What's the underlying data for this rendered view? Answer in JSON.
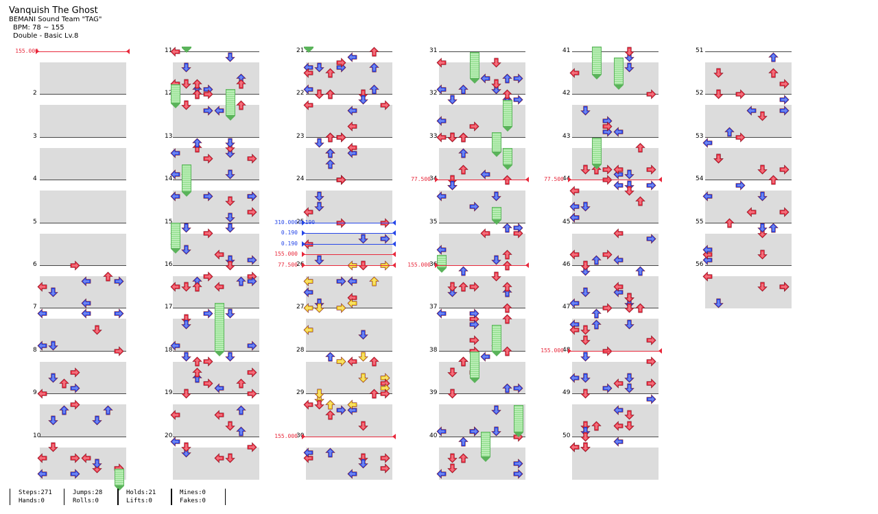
{
  "song": {
    "title": "Vanquish The Ghost",
    "artist": "BEMANI Sound Team \"TAG\"",
    "bpm": "BPM: 78 ~ 155",
    "difficulty": "Double - Basic Lv.8"
  },
  "columns": [
    {
      "measures": [
        "",
        "2",
        "3",
        "4",
        "5",
        "6",
        "7",
        "8",
        "9",
        "10"
      ]
    },
    {
      "measures": [
        "11",
        "12",
        "13",
        "14",
        "15",
        "16",
        "17",
        "18",
        "19",
        "20"
      ]
    },
    {
      "measures": [
        "21",
        "22",
        "23",
        "24",
        "25",
        "26",
        "27",
        "28",
        "29",
        "30"
      ]
    },
    {
      "measures": [
        "31",
        "32",
        "33",
        "34",
        "35",
        "36",
        "37",
        "38",
        "39",
        "40"
      ]
    },
    {
      "measures": [
        "41",
        "42",
        "43",
        "44",
        "45",
        "46",
        "47",
        "48",
        "49",
        "50"
      ]
    },
    {
      "measures": [
        "51",
        "52",
        "53",
        "54",
        "55",
        "56"
      ]
    }
  ],
  "gimmicks": [
    {
      "col": 0,
      "measure": 0,
      "offset": 0,
      "label": "155.000",
      "color": "red"
    },
    {
      "col": 2,
      "measure": 4,
      "offset": 0,
      "label": "310.000",
      "label2": "0.190",
      "color": "blue"
    },
    {
      "col": 2,
      "measure": 4,
      "offset": 1,
      "label": "0.190",
      "color": "blue"
    },
    {
      "col": 2,
      "measure": 4,
      "offset": 2,
      "label": "0.190",
      "color": "blue"
    },
    {
      "col": 2,
      "measure": 4,
      "offset": 3,
      "label": "155.000",
      "color": "red"
    },
    {
      "col": 2,
      "measure": 5,
      "offset": 0,
      "label": "77.500",
      "color": "red"
    },
    {
      "col": 2,
      "measure": 9,
      "offset": 0,
      "label": "155.000",
      "color": "red"
    },
    {
      "col": 3,
      "measure": 3,
      "offset": 0,
      "label": "77.500",
      "color": "red"
    },
    {
      "col": 3,
      "measure": 5,
      "offset": 0,
      "label": "155.000",
      "color": "red"
    },
    {
      "col": 4,
      "measure": 3,
      "offset": 0,
      "label": "77.500",
      "color": "red"
    },
    {
      "col": 4,
      "measure": 7,
      "offset": 0,
      "label": "155.000",
      "color": "red"
    }
  ],
  "stats": {
    "steps": "Steps:271",
    "hands": "Hands:0",
    "jumps": "Jumps:28",
    "rolls": "Rolls:0",
    "holds": "Holds:21",
    "lifts": "Lifts:0",
    "mines": "Mines:0",
    "fakes": "Fakes:0"
  },
  "colors": {
    "quarter": "#e8273a",
    "eighth": "#2445e8",
    "sixteenth": "#f2d020",
    "hold": "#9ee39a",
    "row_shade": "#dcdcdc"
  }
}
